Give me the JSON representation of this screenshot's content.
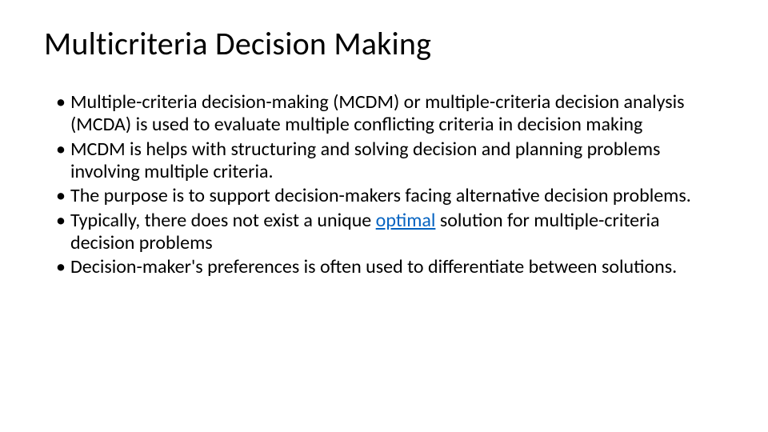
{
  "title": "Multicriteria Decision Making",
  "bullets": [
    "Multiple-criteria decision-making (MCDM) or multiple-criteria decision analysis (MCDA) is used to evaluate multiple conflicting criteria in decision making",
    "MCDM is helps with structuring and solving decision and planning problems involving multiple criteria.",
    "The purpose is to support decision-makers facing alternative decision problems.",
    "Typically, there does not exist a unique |optimal| solution for multiple-criteria decision problems",
    "Decision-maker's preferences is often used to differentiate between solutions."
  ],
  "link_color": "#0563c1",
  "text_color": "#000000",
  "background_color": "#ffffff",
  "title_fontsize": 40,
  "body_fontsize": 24
}
